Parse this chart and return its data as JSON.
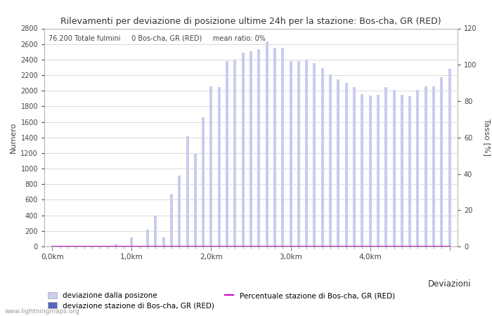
{
  "title": "Rilevamenti per deviazione di posizione ultime 24h per la stazione: Bos-cha, GR (RED)",
  "subtitle": "76.200 Totale fulmini     0 Bos-cha, GR (RED)     mean ratio: 0%",
  "ylabel_left": "Numero",
  "ylabel_right": "Tasso [%]",
  "xlabel_right": "Deviazioni",
  "watermark": "www.lightningmaps.org",
  "bar_color_light": "#c8ccee",
  "bar_color_dark": "#5566bb",
  "line_color": "#cc00cc",
  "ylim_left": [
    0,
    2800
  ],
  "ylim_right": [
    0,
    120
  ],
  "yticks_left": [
    0,
    200,
    400,
    600,
    800,
    1000,
    1200,
    1400,
    1600,
    1800,
    2000,
    2200,
    2400,
    2600,
    2800
  ],
  "yticks_right": [
    0,
    20,
    40,
    60,
    80,
    100,
    120
  ],
  "bar_heights": [
    0,
    0,
    0,
    0,
    0,
    0,
    0,
    0,
    30,
    0,
    120,
    0,
    220,
    400,
    120,
    680,
    910,
    1420,
    1190,
    1660,
    2060,
    2050,
    2380,
    2400,
    2490,
    2510,
    2530,
    2630,
    2550,
    2550,
    2380,
    2380,
    2400,
    2350,
    2290,
    2210,
    2150,
    2100,
    2050,
    1960,
    1940,
    1950,
    2050,
    2010,
    1950,
    1930,
    2010,
    2060,
    2060,
    2170,
    2280
  ],
  "station_bars": [
    0,
    0,
    0,
    0,
    0,
    0,
    0,
    0,
    0,
    0,
    0,
    0,
    0,
    0,
    0,
    0,
    0,
    0,
    0,
    0,
    0,
    0,
    0,
    0,
    0,
    0,
    0,
    0,
    0,
    0,
    0,
    0,
    0,
    0,
    0,
    0,
    0,
    0,
    0,
    0,
    0,
    0,
    0,
    0,
    0,
    0,
    0,
    0,
    0,
    0,
    0
  ],
  "ratio_line": [
    0,
    0,
    0,
    0,
    0,
    0,
    0,
    0,
    0,
    0,
    0,
    0,
    0,
    0,
    0,
    0,
    0,
    0,
    0,
    0,
    0,
    0,
    0,
    0,
    0,
    0,
    0,
    0,
    0,
    0,
    0,
    0,
    0,
    0,
    0,
    0,
    0,
    0,
    0,
    0,
    0,
    0,
    0,
    0,
    0,
    0,
    0,
    0,
    0,
    0,
    0
  ],
  "xtick_positions": [
    0,
    10,
    20,
    30,
    40,
    50
  ],
  "xtick_labels": [
    "0,0km",
    "1,0km",
    "2,0km",
    "3,0km",
    "4,0km",
    ""
  ],
  "minor_xtick_positions": [
    0,
    1,
    2,
    3,
    4,
    5,
    6,
    7,
    8,
    9,
    10,
    11,
    12,
    13,
    14,
    15,
    16,
    17,
    18,
    19,
    20,
    21,
    22,
    23,
    24,
    25,
    26,
    27,
    28,
    29,
    30,
    31,
    32,
    33,
    34,
    35,
    36,
    37,
    38,
    39,
    40,
    41,
    42,
    43,
    44,
    45,
    46,
    47,
    48,
    49,
    50
  ],
  "legend_items": [
    {
      "label": "deviazione dalla posizone",
      "color": "#c8ccee",
      "type": "bar"
    },
    {
      "label": "deviazione stazione di Bos-cha, GR (RED)",
      "color": "#5566bb",
      "type": "bar"
    },
    {
      "label": "Percentuale stazione di Bos-cha, GR (RED)",
      "color": "#cc00cc",
      "type": "line"
    }
  ],
  "fig_width": 7.0,
  "fig_height": 4.5,
  "dpi": 100
}
